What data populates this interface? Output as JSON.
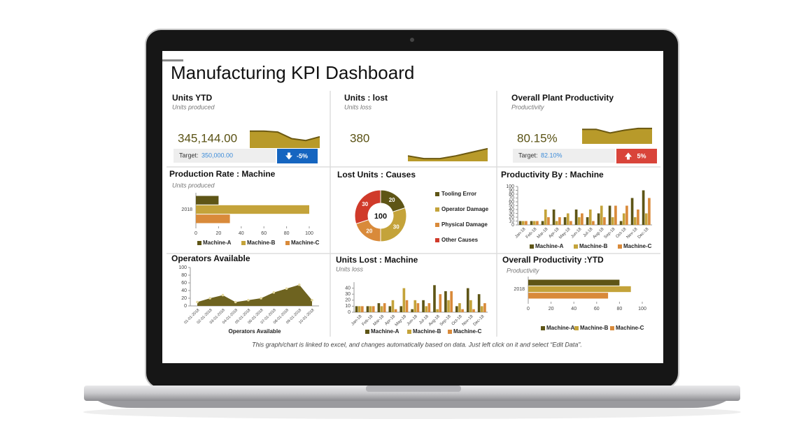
{
  "title": "Manufacturing KPI Dashboard",
  "footer": "This graph/chart is linked to excel, and changes automatically based on data. Just left click on it and select “Edit Data”.",
  "kpis": [
    {
      "title": "Units YTD",
      "subtitle": "Units produced",
      "value": 345144,
      "value_label": "345,144.00",
      "target_text": "Target:",
      "target": 350000,
      "target_label": "350,000.00",
      "change": -5,
      "change_label": "-5%",
      "direction": "down",
      "badge_color": "#1565c0",
      "spark": {
        "values": [
          9,
          9,
          8.5,
          5,
          4,
          6
        ],
        "ylim": [
          0,
          10
        ],
        "color": "#b89a2a"
      }
    },
    {
      "title": "Units : lost",
      "subtitle": "Units loss",
      "value": 380,
      "spark": {
        "values": [
          3,
          1.5,
          1.5,
          3,
          5,
          7
        ],
        "ylim": [
          0,
          10
        ],
        "color": "#b89a2a"
      }
    },
    {
      "title": "Overall Plant Productivity",
      "subtitle": "Productivity",
      "value": 80.15,
      "value_label": "80.15%",
      "target_text": "Target:",
      "target": 82.1,
      "target_label": "82.10%",
      "change": 5,
      "change_label": "5%",
      "direction": "up",
      "badge_color": "#d9443a",
      "spark": {
        "values": [
          8,
          8,
          6,
          7.5,
          8.5,
          8.5
        ],
        "ylim": [
          0,
          10
        ],
        "color": "#b89a2a"
      }
    }
  ],
  "chart_data": [
    {
      "type": "hbar",
      "title": "Production Rate : Machine",
      "subtitle": "Units produced",
      "categories": [
        "2018"
      ],
      "series": [
        {
          "name": "Machine-A",
          "color": "#5e5516",
          "values": [
            20
          ]
        },
        {
          "name": "Machine-B",
          "color": "#c4a33a",
          "values": [
            100
          ]
        },
        {
          "name": "Machine-C",
          "color": "#d98a3a",
          "values": [
            30
          ]
        }
      ],
      "xlim": [
        0,
        100
      ],
      "xticks": [
        0,
        20,
        40,
        60,
        80,
        100
      ],
      "grid": false
    },
    {
      "type": "pie",
      "title": "Lost Units : Causes",
      "categories": [
        "Tooling Error",
        "Operator Damage",
        "Physical Damage",
        "Other Causes"
      ],
      "values": [
        20,
        30,
        20,
        30
      ],
      "colors": [
        "#5e5516",
        "#c4a33a",
        "#d98a3a",
        "#d03a2a"
      ],
      "center_value": 100
    },
    {
      "type": "bar",
      "title": "Productivity By : Machine",
      "categories": [
        "Jan-18",
        "Feb-18",
        "Mar-18",
        "Apr-18",
        "May-18",
        "Jun-18",
        "Jul-18",
        "Aug-18",
        "Sep-18",
        "Oct-18",
        "Nov-18",
        "Dec-18"
      ],
      "series": [
        {
          "name": "Machine-A",
          "color": "#5e5516",
          "values": [
            10,
            10,
            10,
            40,
            20,
            40,
            20,
            30,
            50,
            10,
            70,
            90
          ]
        },
        {
          "name": "Machine-B",
          "color": "#c4a33a",
          "values": [
            10,
            10,
            40,
            10,
            30,
            20,
            40,
            50,
            20,
            30,
            20,
            30
          ]
        },
        {
          "name": "Machine-C",
          "color": "#d98a3a",
          "values": [
            10,
            10,
            20,
            20,
            10,
            30,
            10,
            20,
            50,
            50,
            40,
            70
          ]
        }
      ],
      "ylim": [
        0,
        100
      ],
      "yticks": [
        0,
        10,
        20,
        30,
        40,
        50,
        60,
        70,
        80,
        90,
        100
      ],
      "grid": false
    },
    {
      "type": "area",
      "title": "Operators Available",
      "x_label": "Operators Available",
      "categories": [
        "01-01-2018",
        "02-01-2018",
        "03-01-2018",
        "04-01-2018",
        "05-01-2018",
        "06-01-2018",
        "07-01-2018",
        "08-01-2018",
        "09-01-2018",
        "10-01-2018"
      ],
      "values": [
        10,
        20,
        28,
        10,
        15,
        20,
        35,
        45,
        55,
        15
      ],
      "color": "#6e6320",
      "ylim": [
        0,
        100
      ],
      "yticks": [
        0,
        20,
        40,
        60,
        80,
        100
      ],
      "grid": false
    },
    {
      "type": "bar",
      "title": "Units Lost : Machine",
      "subtitle": "Units loss",
      "categories": [
        "Jan-18",
        "Feb-18",
        "Mar-18",
        "Apr-18",
        "May-18",
        "Jun-18",
        "Jul-18",
        "Aug-18",
        "Sep-18",
        "Oct-18",
        "Nov-18",
        "Dec-18"
      ],
      "series": [
        {
          "name": "Machine-A",
          "color": "#5e5516",
          "values": [
            10,
            10,
            15,
            10,
            10,
            5,
            20,
            45,
            35,
            10,
            40,
            30
          ]
        },
        {
          "name": "Machine-B",
          "color": "#c4a33a",
          "values": [
            10,
            10,
            10,
            20,
            40,
            20,
            10,
            5,
            20,
            15,
            20,
            10
          ]
        },
        {
          "name": "Machine-C",
          "color": "#d98a3a",
          "values": [
            10,
            10,
            15,
            5,
            20,
            15,
            15,
            30,
            35,
            5,
            5,
            15
          ]
        }
      ],
      "ylim": [
        0,
        50
      ],
      "yticks": [
        0,
        10,
        20,
        30,
        40
      ],
      "grid": false
    },
    {
      "type": "hbar",
      "title": "Overall Productivity :YTD",
      "subtitle": "Productivity",
      "categories": [
        "2018"
      ],
      "series": [
        {
          "name": "Machine-A",
          "color": "#5e5516",
          "values": [
            80
          ]
        },
        {
          "name": "Machine-B",
          "color": "#c4a33a",
          "values": [
            90
          ]
        },
        {
          "name": "Machine-C",
          "color": "#d98a3a",
          "values": [
            70
          ]
        }
      ],
      "xlim": [
        0,
        100
      ],
      "xticks": [
        0,
        20,
        40,
        60,
        80,
        100
      ],
      "grid": false
    }
  ]
}
